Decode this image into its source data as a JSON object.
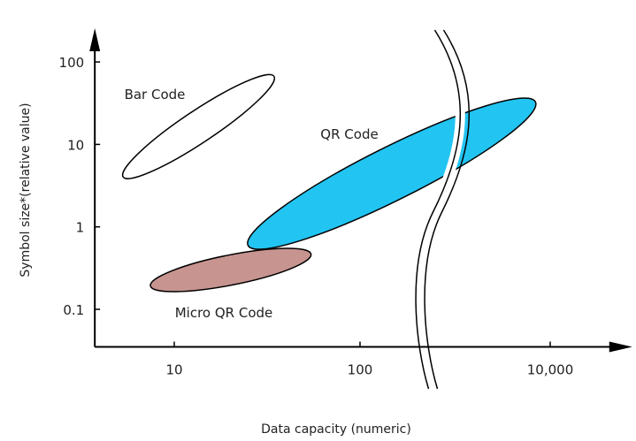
{
  "chart_data": {
    "type": "scatter",
    "xlabel": "Data capacity (numeric)",
    "ylabel": "Symbol size*(relative value)",
    "x_scale": "log",
    "y_scale": "log",
    "xlim": [
      3.5,
      25000
    ],
    "ylim": [
      0.035,
      200
    ],
    "grid": false,
    "x_ticks": [
      {
        "value": 10,
        "label": "10"
      },
      {
        "value": 100,
        "label": "100"
      },
      {
        "value": 10000,
        "label": "10,000"
      }
    ],
    "y_ticks": [
      {
        "value": 0.1,
        "label": "0.1"
      },
      {
        "value": 1,
        "label": "1"
      },
      {
        "value": 10,
        "label": "10"
      },
      {
        "value": 100,
        "label": "100"
      }
    ],
    "axis_break": {
      "between_x": [
        100,
        10000
      ]
    },
    "regions": [
      {
        "name": "Bar Code",
        "x_range": [
          5.5,
          32
        ],
        "y_range": [
          4.5,
          60
        ],
        "fill": "#ffffff",
        "stroke": "#000000"
      },
      {
        "name": "QR Code",
        "x_range": [
          27,
          6000
        ],
        "y_range": [
          0.65,
          30
        ],
        "fill": "#22c4f2",
        "stroke": "#000000"
      },
      {
        "name": "Micro QR Code",
        "x_range": [
          8,
          50
        ],
        "y_range": [
          0.2,
          0.45
        ],
        "fill": "#c79490",
        "stroke": "#000000"
      }
    ]
  }
}
